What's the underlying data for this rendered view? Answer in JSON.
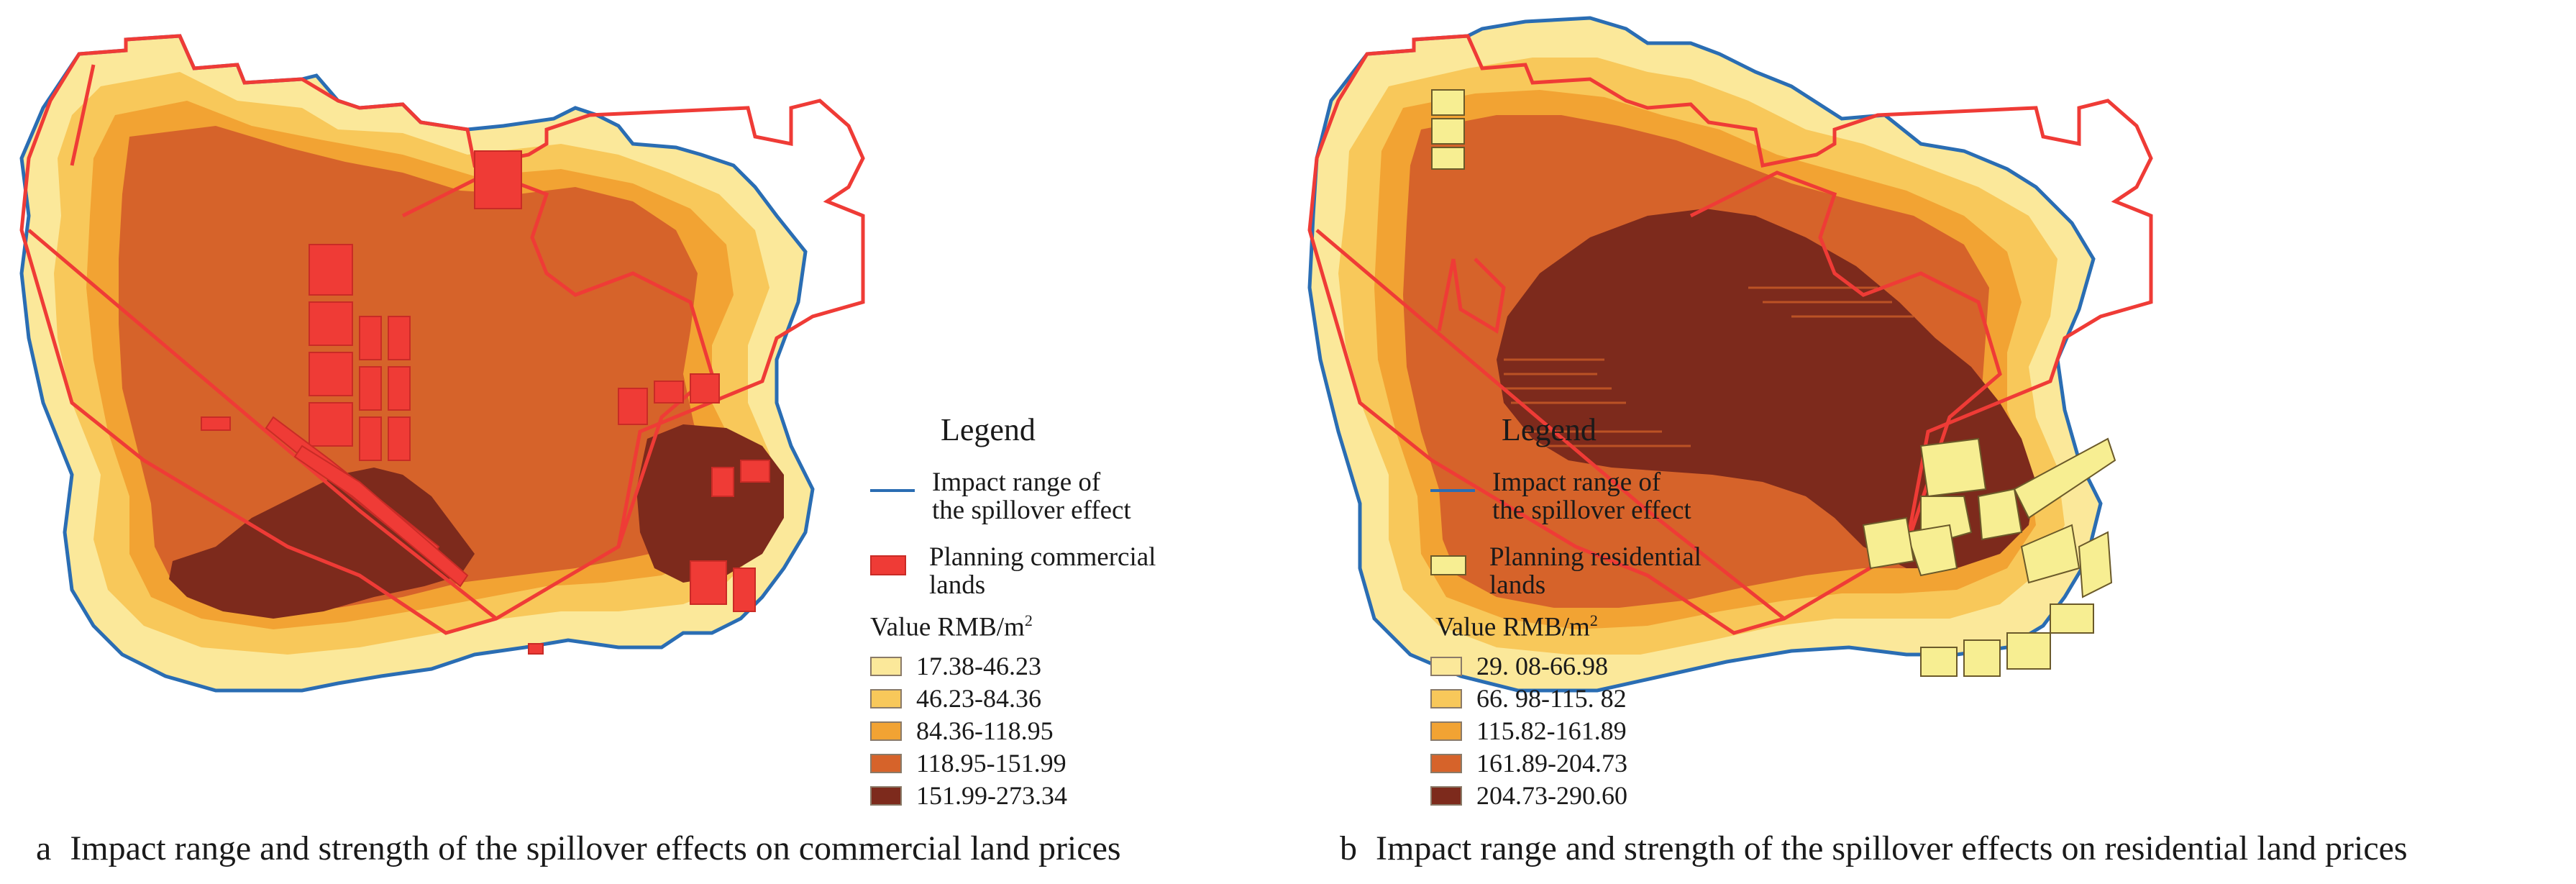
{
  "colors": {
    "class1": "#fbe89a",
    "class2": "#f8c85a",
    "class3": "#f2a333",
    "class4": "#d6632a",
    "class5": "#7d2a1c",
    "boundary_blue": "#2a6db3",
    "planning_red": "#ef3b36",
    "commercial_fill": "#f0453b",
    "residential_fill": "#f7ee92"
  },
  "panels": [
    {
      "id": "a",
      "legend": {
        "title": "Legend",
        "line_label": [
          "Impact range of",
          "the spillover effect"
        ],
        "patch_label": [
          "Planning commercial",
          "lands"
        ],
        "patch_icon": "red-fill-rectangle",
        "value_label": "Value  RMB/m",
        "value_sup": "2",
        "classes": [
          "17.38-46.23",
          "46.23-84.36",
          "84.36-118.95",
          "118.95-151.99",
          "151.99-273.34"
        ]
      },
      "caption": {
        "letter": "a",
        "text": "Impact range and strength of the spillover effects on commercial land prices"
      }
    },
    {
      "id": "b",
      "legend": {
        "title": "Legend",
        "line_label": [
          "Impact range of",
          "the spillover effect"
        ],
        "patch_label": [
          "Planning residential",
          "lands"
        ],
        "patch_icon": "yellow-fill-rectangle",
        "value_label": "Value  RMB/m",
        "value_sup": "2",
        "classes": [
          "29. 08-66.98",
          "66. 98-115. 82",
          "115.82-161.89",
          "161.89-204.73",
          "204.73-290.60"
        ]
      },
      "caption": {
        "letter": "b",
        "text": "Impact range and strength of the spillover effects on residential land prices"
      }
    }
  ]
}
